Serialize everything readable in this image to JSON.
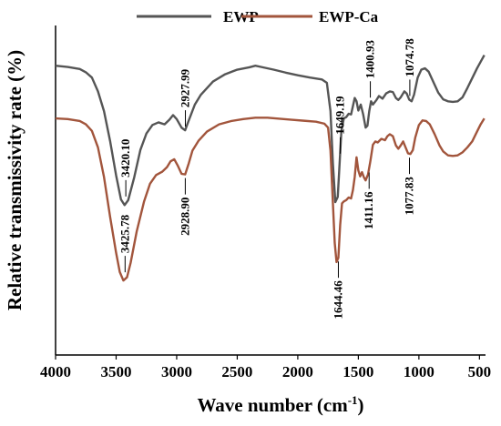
{
  "chart_data": {
    "type": "line",
    "xlabel": "Wave number (cm",
    "xlabel_sup": "-1",
    "xlabel_end": ")",
    "ylabel": "Relative transmissivity rate (%)",
    "xlim": [
      4000,
      450
    ],
    "x_reversed": true,
    "x_ticks": [
      4000,
      3500,
      3000,
      2500,
      2000,
      1500,
      1000,
      500
    ],
    "y_ticks_shown": false,
    "legend_position": "top-center",
    "series": [
      {
        "name": "EWP",
        "color": "#555555",
        "points": [
          [
            4000,
            0.878
          ],
          [
            3900,
            0.874
          ],
          [
            3800,
            0.868
          ],
          [
            3750,
            0.858
          ],
          [
            3700,
            0.842
          ],
          [
            3650,
            0.8
          ],
          [
            3600,
            0.74
          ],
          [
            3550,
            0.65
          ],
          [
            3500,
            0.545
          ],
          [
            3460,
            0.472
          ],
          [
            3430,
            0.455
          ],
          [
            3400,
            0.47
          ],
          [
            3350,
            0.54
          ],
          [
            3300,
            0.622
          ],
          [
            3250,
            0.672
          ],
          [
            3200,
            0.698
          ],
          [
            3150,
            0.706
          ],
          [
            3100,
            0.7
          ],
          [
            3060,
            0.714
          ],
          [
            3030,
            0.728
          ],
          [
            3000,
            0.716
          ],
          [
            2960,
            0.69
          ],
          [
            2930,
            0.682
          ],
          [
            2900,
            0.712
          ],
          [
            2850,
            0.76
          ],
          [
            2800,
            0.79
          ],
          [
            2700,
            0.83
          ],
          [
            2600,
            0.852
          ],
          [
            2500,
            0.866
          ],
          [
            2400,
            0.873
          ],
          [
            2350,
            0.878
          ],
          [
            2300,
            0.874
          ],
          [
            2200,
            0.866
          ],
          [
            2100,
            0.857
          ],
          [
            2000,
            0.849
          ],
          [
            1900,
            0.842
          ],
          [
            1800,
            0.836
          ],
          [
            1760,
            0.826
          ],
          [
            1730,
            0.74
          ],
          [
            1710,
            0.58
          ],
          [
            1690,
            0.464
          ],
          [
            1670,
            0.48
          ],
          [
            1655,
            0.58
          ],
          [
            1640,
            0.68
          ],
          [
            1620,
            0.718
          ],
          [
            1600,
            0.722
          ],
          [
            1580,
            0.732
          ],
          [
            1560,
            0.73
          ],
          [
            1545,
            0.755
          ],
          [
            1530,
            0.78
          ],
          [
            1515,
            0.77
          ],
          [
            1500,
            0.742
          ],
          [
            1480,
            0.76
          ],
          [
            1460,
            0.73
          ],
          [
            1440,
            0.69
          ],
          [
            1425,
            0.696
          ],
          [
            1410,
            0.74
          ],
          [
            1395,
            0.77
          ],
          [
            1380,
            0.76
          ],
          [
            1350,
            0.774
          ],
          [
            1330,
            0.786
          ],
          [
            1300,
            0.778
          ],
          [
            1270,
            0.794
          ],
          [
            1240,
            0.8
          ],
          [
            1215,
            0.798
          ],
          [
            1190,
            0.78
          ],
          [
            1170,
            0.774
          ],
          [
            1150,
            0.782
          ],
          [
            1120,
            0.8
          ],
          [
            1100,
            0.793
          ],
          [
            1080,
            0.775
          ],
          [
            1060,
            0.77
          ],
          [
            1040,
            0.79
          ],
          [
            1010,
            0.842
          ],
          [
            980,
            0.866
          ],
          [
            950,
            0.87
          ],
          [
            920,
            0.86
          ],
          [
            880,
            0.828
          ],
          [
            840,
            0.796
          ],
          [
            800,
            0.776
          ],
          [
            760,
            0.77
          ],
          [
            720,
            0.768
          ],
          [
            680,
            0.77
          ],
          [
            640,
            0.782
          ],
          [
            600,
            0.81
          ],
          [
            560,
            0.84
          ],
          [
            520,
            0.87
          ],
          [
            490,
            0.89
          ],
          [
            460,
            0.91
          ]
        ]
      },
      {
        "name": "EWP-Ca",
        "color": "#a2553c",
        "points": [
          [
            4000,
            0.718
          ],
          [
            3900,
            0.716
          ],
          [
            3800,
            0.71
          ],
          [
            3750,
            0.7
          ],
          [
            3700,
            0.68
          ],
          [
            3650,
            0.63
          ],
          [
            3600,
            0.54
          ],
          [
            3550,
            0.42
          ],
          [
            3500,
            0.31
          ],
          [
            3470,
            0.252
          ],
          [
            3440,
            0.226
          ],
          [
            3410,
            0.236
          ],
          [
            3380,
            0.28
          ],
          [
            3330,
            0.375
          ],
          [
            3270,
            0.465
          ],
          [
            3220,
            0.52
          ],
          [
            3170,
            0.546
          ],
          [
            3120,
            0.556
          ],
          [
            3080,
            0.57
          ],
          [
            3050,
            0.588
          ],
          [
            3020,
            0.594
          ],
          [
            2990,
            0.574
          ],
          [
            2960,
            0.55
          ],
          [
            2930,
            0.548
          ],
          [
            2900,
            0.582
          ],
          [
            2870,
            0.62
          ],
          [
            2820,
            0.65
          ],
          [
            2750,
            0.678
          ],
          [
            2650,
            0.7
          ],
          [
            2550,
            0.71
          ],
          [
            2450,
            0.716
          ],
          [
            2350,
            0.72
          ],
          [
            2250,
            0.72
          ],
          [
            2150,
            0.717
          ],
          [
            2050,
            0.714
          ],
          [
            1950,
            0.711
          ],
          [
            1850,
            0.708
          ],
          [
            1780,
            0.702
          ],
          [
            1750,
            0.69
          ],
          [
            1730,
            0.62
          ],
          [
            1710,
            0.46
          ],
          [
            1695,
            0.34
          ],
          [
            1680,
            0.282
          ],
          [
            1665,
            0.295
          ],
          [
            1650,
            0.395
          ],
          [
            1635,
            0.46
          ],
          [
            1620,
            0.466
          ],
          [
            1600,
            0.47
          ],
          [
            1580,
            0.478
          ],
          [
            1560,
            0.475
          ],
          [
            1545,
            0.5
          ],
          [
            1530,
            0.54
          ],
          [
            1515,
            0.6
          ],
          [
            1500,
            0.56
          ],
          [
            1485,
            0.542
          ],
          [
            1470,
            0.555
          ],
          [
            1455,
            0.54
          ],
          [
            1440,
            0.53
          ],
          [
            1420,
            0.548
          ],
          [
            1400,
            0.59
          ],
          [
            1380,
            0.638
          ],
          [
            1360,
            0.648
          ],
          [
            1340,
            0.645
          ],
          [
            1310,
            0.656
          ],
          [
            1280,
            0.652
          ],
          [
            1260,
            0.664
          ],
          [
            1240,
            0.67
          ],
          [
            1215,
            0.664
          ],
          [
            1190,
            0.636
          ],
          [
            1170,
            0.626
          ],
          [
            1150,
            0.636
          ],
          [
            1130,
            0.648
          ],
          [
            1110,
            0.63
          ],
          [
            1090,
            0.612
          ],
          [
            1070,
            0.61
          ],
          [
            1050,
            0.622
          ],
          [
            1030,
            0.66
          ],
          [
            1000,
            0.698
          ],
          [
            970,
            0.712
          ],
          [
            940,
            0.71
          ],
          [
            910,
            0.7
          ],
          [
            870,
            0.67
          ],
          [
            830,
            0.636
          ],
          [
            800,
            0.618
          ],
          [
            760,
            0.606
          ],
          [
            720,
            0.604
          ],
          [
            680,
            0.606
          ],
          [
            640,
            0.615
          ],
          [
            600,
            0.63
          ],
          [
            560,
            0.648
          ],
          [
            520,
            0.678
          ],
          [
            490,
            0.7
          ],
          [
            460,
            0.718
          ]
        ]
      }
    ],
    "annotations": [
      {
        "text": "3420.10",
        "x": 3420,
        "series": "EWP",
        "side": "above",
        "y": 0.47
      },
      {
        "text": "2927.99",
        "x": 2928,
        "series": "EWP",
        "side": "above",
        "y": 0.682
      },
      {
        "text": "1649.19",
        "x": 1649,
        "series": "EWP",
        "side": "above",
        "y": 0.6
      },
      {
        "text": "1400.93",
        "x": 1401,
        "series": "EWP",
        "side": "above",
        "y": 0.77
      },
      {
        "text": "1074.78",
        "x": 1075,
        "series": "EWP",
        "side": "above",
        "y": 0.775
      },
      {
        "text": "3425.78",
        "x": 3426,
        "series": "EWP-Ca",
        "side": "above",
        "y": 0.24
      },
      {
        "text": "2928.90",
        "x": 2929,
        "series": "EWP-Ca",
        "side": "below",
        "y": 0.548
      },
      {
        "text": "1644.46",
        "x": 1665,
        "series": "EWP-Ca",
        "side": "below",
        "y": 0.295
      },
      {
        "text": "1411.16",
        "x": 1411,
        "series": "EWP-Ca",
        "side": "below",
        "y": 0.565
      },
      {
        "text": "1077.83",
        "x": 1078,
        "series": "EWP-Ca",
        "side": "below",
        "y": 0.61
      }
    ]
  }
}
